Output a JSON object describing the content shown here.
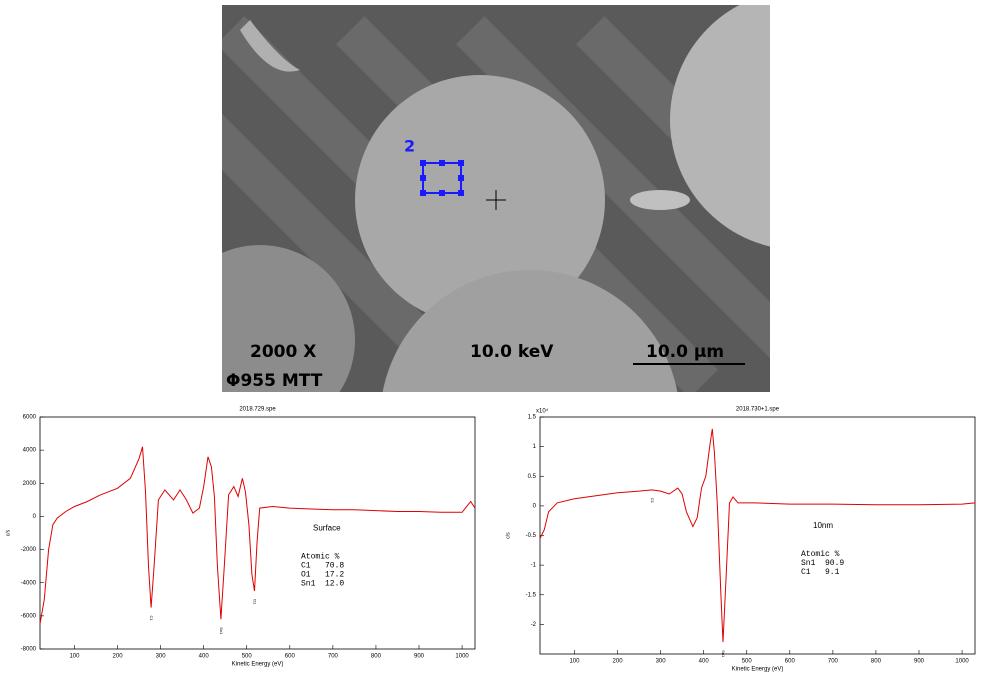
{
  "image": {
    "region_label": "2",
    "magnification": "2000 X",
    "voltage": "10.0 keV",
    "scale_bar": "10.0 µm",
    "instrument": "Φ955  MTT"
  },
  "chart_data": [
    {
      "type": "line",
      "title": "2018.729.spe",
      "x_label": "Kinetic Energy (eV)",
      "y_label": "c/s",
      "xlim": [
        20,
        1030
      ],
      "xticks": [
        100,
        200,
        300,
        400,
        500,
        600,
        700,
        800,
        900,
        1000
      ],
      "ylim": [
        -8000,
        6000
      ],
      "yticks": [
        -8000,
        -6000,
        -4000,
        -2000,
        0,
        2000,
        4000,
        6000
      ],
      "x": [
        20,
        30,
        40,
        50,
        60,
        80,
        100,
        130,
        160,
        200,
        230,
        250,
        258,
        265,
        272,
        278,
        285,
        295,
        310,
        330,
        345,
        360,
        375,
        390,
        400,
        410,
        418,
        425,
        432,
        440,
        448,
        458,
        470,
        480,
        490,
        497,
        505,
        512,
        518,
        524,
        530,
        560,
        600,
        650,
        700,
        750,
        800,
        850,
        900,
        950,
        1000,
        1020,
        1030
      ],
      "series": [
        {
          "color": "#e00000",
          "values": [
            -6500,
            -5000,
            -2000,
            -500,
            -100,
            300,
            600,
            900,
            1300,
            1700,
            2300,
            3500,
            4200,
            1500,
            -3000,
            -5500,
            -3000,
            1000,
            1600,
            1000,
            1600,
            1000,
            200,
            500,
            1800,
            3600,
            3000,
            1200,
            -3000,
            -6200,
            -3000,
            1300,
            1800,
            1200,
            2300,
            1500,
            -500,
            -3500,
            -4500,
            -1500,
            500,
            600,
            500,
            450,
            400,
            400,
            350,
            300,
            300,
            250,
            250,
            900,
            500
          ]
        }
      ],
      "peak_labels": [
        {
          "label": "C1",
          "x": 278
        },
        {
          "label": "Sn1",
          "x": 440
        },
        {
          "label": "O1",
          "x": 518
        }
      ],
      "sample_label": "Surface",
      "table_header": "Atomic %",
      "table_rows": [
        [
          "C1",
          "70.8"
        ],
        [
          "O1",
          "17.2"
        ],
        [
          "Sn1",
          "12.0"
        ]
      ]
    },
    {
      "type": "line",
      "title": "2018.730+1.spe",
      "x_label": "Kinetic Energy (eV)",
      "y_label": "c/s",
      "y_multiplier": "x10⁴",
      "xlim": [
        20,
        1030
      ],
      "xticks": [
        100,
        200,
        300,
        400,
        500,
        600,
        700,
        800,
        900,
        1000
      ],
      "ylim": [
        -2.5,
        1.5
      ],
      "yticks": [
        -2,
        -1.5,
        -1,
        -0.5,
        0,
        0.5,
        1,
        1.5
      ],
      "x": [
        20,
        30,
        40,
        60,
        100,
        150,
        200,
        250,
        280,
        300,
        320,
        340,
        350,
        360,
        375,
        385,
        395,
        405,
        415,
        420,
        425,
        432,
        440,
        445,
        452,
        460,
        468,
        480,
        520,
        600,
        700,
        800,
        900,
        1000,
        1030
      ],
      "series": [
        {
          "color": "#e00000",
          "values": [
            -0.55,
            -0.4,
            -0.1,
            0.05,
            0.12,
            0.17,
            0.22,
            0.25,
            0.27,
            0.25,
            0.2,
            0.3,
            0.2,
            -0.1,
            -0.35,
            -0.2,
            0.3,
            0.5,
            1.05,
            1.3,
            0.9,
            0,
            -1.5,
            -2.3,
            -1.2,
            0.05,
            0.15,
            0.05,
            0.05,
            0.03,
            0.03,
            0.02,
            0.02,
            0.03,
            0.05
          ]
        }
      ],
      "peak_labels": [
        {
          "label": "C1",
          "x": 280
        },
        {
          "label": "Sn1",
          "x": 445
        }
      ],
      "sample_label": "10nm",
      "table_header": "Atomic %",
      "table_rows": [
        [
          "Sn1",
          "90.9"
        ],
        [
          "C1",
          "9.1"
        ]
      ]
    }
  ]
}
